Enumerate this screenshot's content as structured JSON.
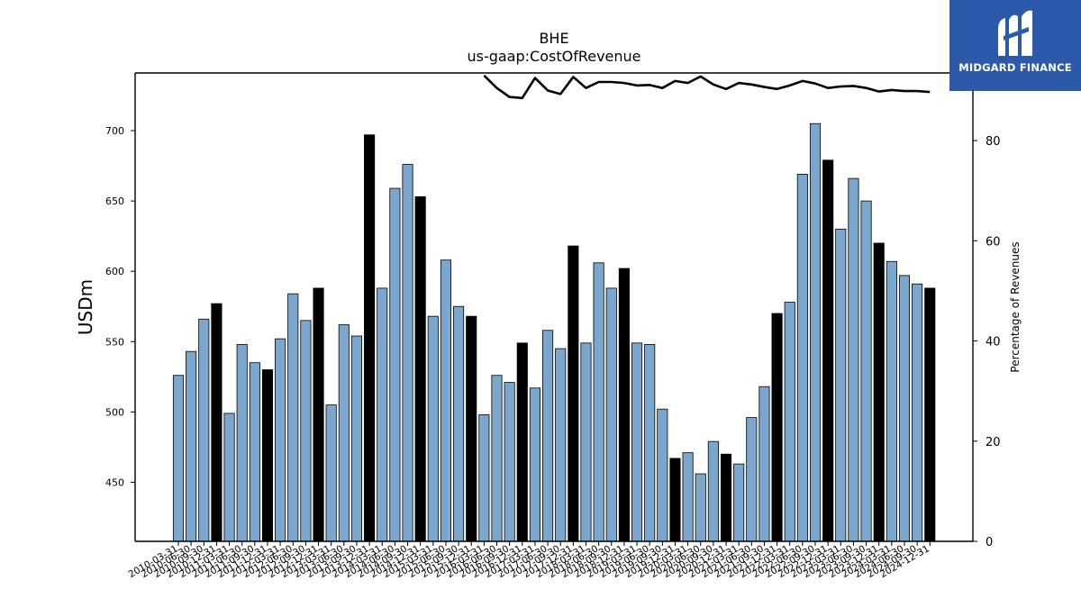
{
  "brand": {
    "name": "MIDGARD FINANCE",
    "logo_icon": "midgard-m-logo-icon",
    "color": "#2c5aa8"
  },
  "chart_data": {
    "type": "bar",
    "title": "BHE",
    "subtitle": "us-gaap:CostOfRevenue",
    "ylabel": "USDm",
    "y2label": "Percentage of Revenues",
    "ylim": [
      408,
      741
    ],
    "y2lim": [
      0,
      93.5
    ],
    "yticks": [
      "450",
      "500",
      "550",
      "600",
      "650",
      "700"
    ],
    "y2ticks": [
      "0",
      "20",
      "40",
      "60",
      "80"
    ],
    "bar_colors": {
      "quarter": "#7ba7cf",
      "fiscal_year_end": "#000000"
    },
    "line_color": "#000000",
    "categories": [
      "2010-03-31",
      "2010-06-30",
      "2010-09-30",
      "2010-12-31",
      "2011-03-31",
      "2011-06-30",
      "2011-09-30",
      "2011-12-31",
      "2012-03-31",
      "2012-06-30",
      "2012-09-30",
      "2012-12-31",
      "2013-03-31",
      "2013-06-30",
      "2013-09-30",
      "2013-12-31",
      "2014-03-31",
      "2014-06-30",
      "2014-09-30",
      "2014-12-31",
      "2015-03-31",
      "2015-06-30",
      "2015-09-30",
      "2015-12-31",
      "2016-03-31",
      "2016-06-30",
      "2016-09-30",
      "2016-12-31",
      "2017-03-31",
      "2017-06-30",
      "2017-09-30",
      "2017-12-31",
      "2018-03-31",
      "2018-06-30",
      "2018-09-30",
      "2018-12-31",
      "2019-03-31",
      "2019-06-30",
      "2019-09-30",
      "2019-12-31",
      "2020-03-31",
      "2020-06-30",
      "2020-09-30",
      "2020-12-31",
      "2021-03-31",
      "2021-06-30",
      "2021-09-30",
      "2021-12-31",
      "2022-03-31",
      "2022-06-30",
      "2022-09-30",
      "2022-12-31",
      "2023-03-31",
      "2023-06-30",
      "2023-09-30",
      "2023-12-31",
      "2024-03-31",
      "2024-06-30",
      "2024-09-30",
      "2024-12-31"
    ],
    "series": [
      {
        "values": [
          526,
          543,
          566,
          577,
          499,
          548,
          535,
          530,
          552,
          584,
          565,
          588,
          505,
          562,
          554,
          697,
          588,
          659,
          676,
          653,
          568,
          608,
          575,
          568,
          498,
          526,
          521,
          549,
          517,
          558,
          545,
          618,
          549,
          606,
          588,
          602,
          549,
          548,
          502,
          467,
          471,
          456,
          479,
          470,
          463,
          496,
          518,
          570,
          578,
          669,
          705,
          679,
          630,
          666,
          650,
          620,
          607,
          597,
          591,
          588
        ]
      },
      {
        "type": "line",
        "axis": "right",
        "values": [
          null,
          null,
          null,
          null,
          null,
          null,
          null,
          null,
          null,
          null,
          null,
          null,
          null,
          null,
          null,
          null,
          null,
          null,
          null,
          null,
          null,
          null,
          null,
          null,
          93,
          90.5,
          88.7,
          88.5,
          92.5,
          90,
          89.3,
          92.7,
          90.5,
          91.7,
          91.7,
          91.5,
          91,
          91.1,
          90.5,
          91.9,
          91.5,
          92.8,
          91.2,
          90.3,
          91.5,
          91.2,
          90.7,
          90.3,
          91,
          91.9,
          91.4,
          90.5,
          90.8,
          90.9,
          90.5,
          89.8,
          90.1,
          89.9,
          89.9,
          89.7
        ]
      }
    ]
  }
}
